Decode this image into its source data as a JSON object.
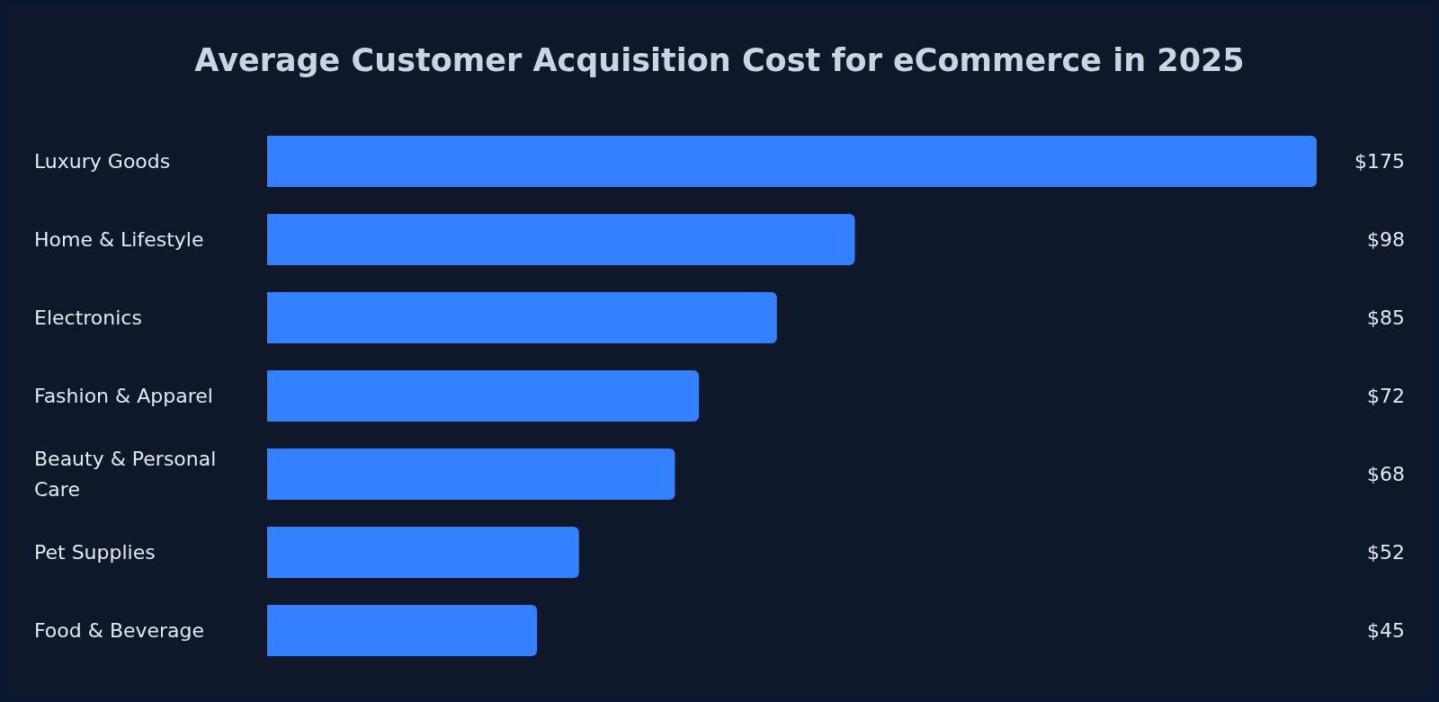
{
  "chart_data": {
    "type": "bar",
    "orientation": "horizontal",
    "title": "Average Customer Acquisition Cost for eCommerce in 2025",
    "categories": [
      "Luxury Goods",
      "Home & Lifestyle",
      "Electronics",
      "Fashion & Apparel",
      "Beauty & Personal Care",
      "Pet Supplies",
      "Food & Beverage"
    ],
    "values": [
      175,
      98,
      85,
      72,
      68,
      52,
      45
    ],
    "value_labels": [
      "$175",
      "$98",
      "$85",
      "$72",
      "$68",
      "$52",
      "$45"
    ],
    "color": "#3381ff"
  }
}
